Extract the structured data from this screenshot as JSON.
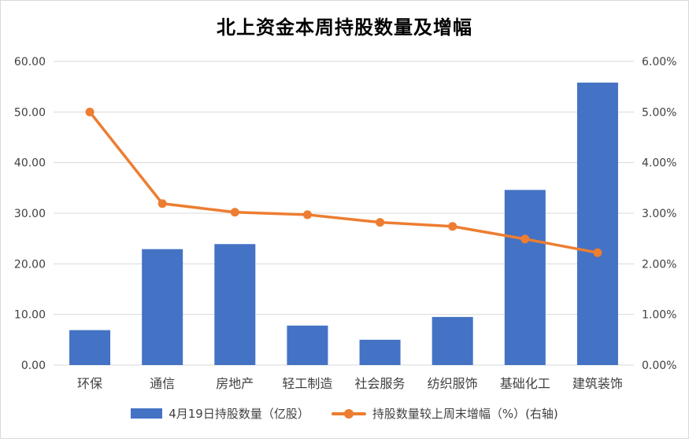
{
  "chart_data": {
    "type": "bar",
    "title": "北上资金本周持股数量及增幅",
    "categories": [
      "环保",
      "通信",
      "房地产",
      "轻工制造",
      "社会服务",
      "纺织服饰",
      "基础化工",
      "建筑装饰"
    ],
    "series": [
      {
        "name": "4月19日持股数量（亿股）",
        "type": "bar",
        "axis": "left",
        "color": "#4472c4",
        "values": [
          6.9,
          22.9,
          23.9,
          7.8,
          5.0,
          9.5,
          34.6,
          55.8
        ]
      },
      {
        "name": "持股数量较上周末增幅（%）(右轴)",
        "type": "line",
        "axis": "right",
        "color": "#ed7d31",
        "values": [
          5.0,
          3.19,
          3.02,
          2.97,
          2.82,
          2.74,
          2.49,
          2.22
        ]
      }
    ],
    "y_left": {
      "min": 0,
      "max": 60,
      "step": 10,
      "ticks": [
        "0.00",
        "10.00",
        "20.00",
        "30.00",
        "40.00",
        "50.00",
        "60.00"
      ]
    },
    "y_right": {
      "min": 0,
      "max": 6,
      "step": 1,
      "ticks": [
        "0.00%",
        "1.00%",
        "2.00%",
        "3.00%",
        "4.00%",
        "5.00%",
        "6.00%"
      ]
    },
    "grid": true,
    "legend_position": "bottom"
  }
}
